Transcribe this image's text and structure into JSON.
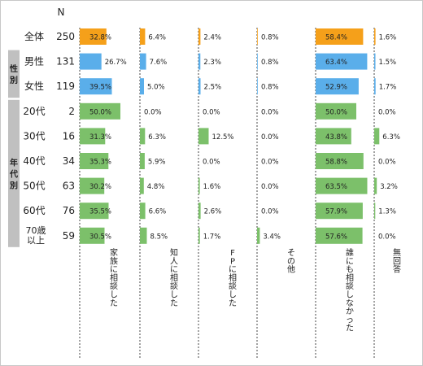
{
  "chart_data": {
    "type": "bar",
    "n_header": "N",
    "colors": {
      "total": "#f5a01a",
      "gender": "#5aaeea",
      "age": "#7cc06a",
      "group_box": "#c0c0c0"
    },
    "groups": [
      {
        "label": "",
        "rows": [
          0
        ]
      },
      {
        "label": "性別",
        "rows": [
          1,
          2
        ]
      },
      {
        "label": "年代別",
        "rows": [
          3,
          4,
          5,
          6,
          7,
          8
        ]
      }
    ],
    "columns": [
      "家族に相談した",
      "知人に相談した",
      "FPに相談した",
      "その他",
      "誰にも相談しなかった",
      "無回答"
    ],
    "rows": [
      {
        "label": "全体",
        "n": "250",
        "kind": "total",
        "values": [
          32.8,
          6.4,
          2.4,
          0.8,
          58.4,
          1.6
        ]
      },
      {
        "label": "男性",
        "n": "131",
        "kind": "gender",
        "values": [
          26.7,
          7.6,
          2.3,
          0.8,
          63.4,
          1.5
        ]
      },
      {
        "label": "女性",
        "n": "119",
        "kind": "gender",
        "values": [
          39.5,
          5.0,
          2.5,
          0.8,
          52.9,
          1.7
        ]
      },
      {
        "label": "20代",
        "n": "2",
        "kind": "age",
        "values": [
          50.0,
          0.0,
          0.0,
          0.0,
          50.0,
          0.0
        ]
      },
      {
        "label": "30代",
        "n": "16",
        "kind": "age",
        "values": [
          31.3,
          6.3,
          12.5,
          0.0,
          43.8,
          6.3
        ]
      },
      {
        "label": "40代",
        "n": "34",
        "kind": "age",
        "values": [
          35.3,
          5.9,
          0.0,
          0.0,
          58.8,
          0.0
        ]
      },
      {
        "label": "50代",
        "n": "63",
        "kind": "age",
        "values": [
          30.2,
          4.8,
          1.6,
          0.0,
          63.5,
          3.2
        ]
      },
      {
        "label": "60代",
        "n": "76",
        "kind": "age",
        "values": [
          35.5,
          6.6,
          2.6,
          0.0,
          57.9,
          1.3
        ]
      },
      {
        "label": [
          "70歳",
          "以上"
        ],
        "n": "59",
        "kind": "age",
        "values": [
          30.5,
          8.5,
          1.7,
          3.4,
          57.6,
          0.0
        ]
      }
    ],
    "value_format": "0.0%"
  }
}
